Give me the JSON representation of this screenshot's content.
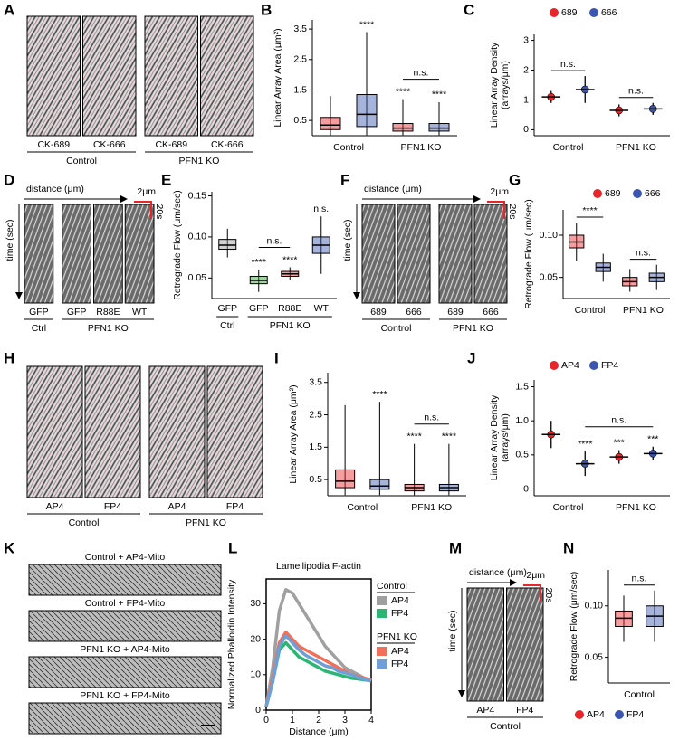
{
  "image_panels": [
    {
      "letter": "A",
      "groups": [
        {
          "name": "Control",
          "images": [
            "CK-689",
            "CK-666"
          ]
        },
        {
          "name": "PFN1 KO",
          "images": [
            "CK-689",
            "CK-666"
          ]
        }
      ]
    },
    {
      "letter": "D",
      "axis_x": "distance (μm)",
      "axis_y": "time (sec)",
      "scale_x": "2μm",
      "scale_y": "20s",
      "groups": [
        {
          "name": "Ctrl",
          "images": [
            "GFP"
          ]
        },
        {
          "name": "PFN1 KO",
          "images": [
            "GFP",
            "R88E",
            "WT"
          ]
        }
      ]
    },
    {
      "letter": "F",
      "axis_x": "distance (μm)",
      "axis_y": "time (sec)",
      "scale_x": "2μm",
      "scale_y": "20s",
      "groups": [
        {
          "name": "Control",
          "images": [
            "689",
            "666"
          ]
        },
        {
          "name": "PFN1 KO",
          "images": [
            "689",
            "666"
          ]
        }
      ]
    },
    {
      "letter": "H",
      "groups": [
        {
          "name": "Control",
          "images": [
            "AP4",
            "FP4"
          ]
        },
        {
          "name": "PFN1 KO",
          "images": [
            "AP4",
            "FP4"
          ]
        }
      ]
    },
    {
      "letter": "K",
      "images": [
        "Control + AP4-Mito",
        "Control + FP4-Mito",
        "PFN1 KO + AP4-Mito",
        "PFN1 KO + FP4-Mito"
      ]
    },
    {
      "letter": "M",
      "axis_x": "distance (μm)",
      "axis_y": "time (sec)",
      "scale_x": "2μm",
      "scale_y": "20s",
      "groups": [
        {
          "name": "Control",
          "images": [
            "AP4",
            "FP4"
          ]
        }
      ]
    }
  ],
  "chart_data": [
    {
      "letter": "B",
      "type": "box",
      "ylabel": [
        "Linear Array Area (μm²)"
      ],
      "ylim": [
        0,
        3.8
      ],
      "yticks": [
        0.5,
        1.5,
        2.5,
        3.5
      ],
      "groups": [
        {
          "name": "Control",
          "boxes": [
            {
              "color": "#e8262a",
              "stats": [
                0.02,
                0.2,
                0.35,
                0.6,
                1.3
              ]
            },
            {
              "color": "#3a56b0",
              "stats": [
                0.02,
                0.3,
                0.7,
                1.35,
                3.4
              ],
              "sig": "****"
            }
          ]
        },
        {
          "name": "PFN1 KO",
          "boxes": [
            {
              "color": "#e8262a",
              "stats": [
                0.02,
                0.15,
                0.25,
                0.4,
                1.2
              ],
              "sig": "****"
            },
            {
              "color": "#3a56b0",
              "stats": [
                0.02,
                0.15,
                0.25,
                0.4,
                1.1
              ],
              "sig": "****"
            }
          ]
        }
      ],
      "brackets": [
        {
          "text": "n.s.",
          "from": [
            1,
            0
          ],
          "to": [
            1,
            1
          ]
        }
      ]
    },
    {
      "letter": "C",
      "type": "mean_sd",
      "ylabel": [
        "Linear Array Density",
        "(arrays/μm)"
      ],
      "ylim": [
        -0.2,
        3.2
      ],
      "yticks": [
        0,
        1,
        2,
        3
      ],
      "legend": [
        {
          "name": "689",
          "color": "#e8262a"
        },
        {
          "name": "666",
          "color": "#3a56b0"
        }
      ],
      "groups": [
        {
          "name": "Control",
          "boxes": [
            {
              "color": "#e8262a",
              "stats": [
                1.1,
                0.2
              ]
            },
            {
              "color": "#3a56b0",
              "stats": [
                1.35,
                0.45
              ]
            }
          ]
        },
        {
          "name": "PFN1 KO",
          "boxes": [
            {
              "color": "#e8262a",
              "stats": [
                0.65,
                0.2
              ]
            },
            {
              "color": "#3a56b0",
              "stats": [
                0.7,
                0.2
              ]
            }
          ]
        }
      ],
      "brackets": [
        {
          "text": "n.s.",
          "from": [
            0,
            0
          ],
          "to": [
            0,
            1
          ]
        },
        {
          "text": "n.s.",
          "from": [
            1,
            0
          ],
          "to": [
            1,
            1
          ]
        }
      ]
    },
    {
      "letter": "E",
      "type": "box",
      "ylabel": [
        "Retrograde Flow (μm/sec)"
      ],
      "ylim": [
        0.025,
        0.155
      ],
      "yticks": [
        0.05,
        {
          "value": 0.1,
          "label": "0.10"
        },
        0.15
      ],
      "groups": [
        {
          "name": "Ctrl",
          "boxes": [
            {
              "label": "GFP",
              "color": "#999999",
              "stats": [
                0.075,
                0.085,
                0.09,
                0.097,
                0.11
              ]
            }
          ]
        },
        {
          "name": "PFN1 KO",
          "boxes": [
            {
              "label": "GFP",
              "color": "#2ca02c",
              "stats": [
                0.033,
                0.043,
                0.047,
                0.052,
                0.06
              ],
              "sig": "****"
            },
            {
              "label": "R88E",
              "color": "#e8262a",
              "stats": [
                0.048,
                0.052,
                0.055,
                0.058,
                0.063
              ],
              "sig": "****"
            },
            {
              "label": "WT",
              "color": "#3a56b0",
              "stats": [
                0.055,
                0.08,
                0.09,
                0.1,
                0.125
              ],
              "sig": "n.s."
            }
          ]
        }
      ],
      "brackets": [
        {
          "text": "n.s.",
          "from": [
            1,
            0
          ],
          "to": [
            1,
            1
          ]
        }
      ]
    },
    {
      "letter": "G",
      "type": "box",
      "ylabel": [
        "Retrograde Flow (μm/sec)"
      ],
      "ylim": [
        0.025,
        0.13
      ],
      "yticks": [
        0.05,
        {
          "value": 0.1,
          "label": "0.10"
        }
      ],
      "legend": [
        {
          "name": "689",
          "color": "#e8262a"
        },
        {
          "name": "666",
          "color": "#3a56b0"
        }
      ],
      "groups": [
        {
          "name": "Control",
          "boxes": [
            {
              "color": "#e8262a",
              "stats": [
                0.07,
                0.085,
                0.092,
                0.1,
                0.115
              ]
            },
            {
              "color": "#3a56b0",
              "stats": [
                0.045,
                0.057,
                0.062,
                0.067,
                0.078
              ]
            }
          ]
        },
        {
          "name": "PFN1 KO",
          "boxes": [
            {
              "color": "#e8262a",
              "stats": [
                0.033,
                0.04,
                0.045,
                0.05,
                0.06
              ]
            },
            {
              "color": "#3a56b0",
              "stats": [
                0.035,
                0.045,
                0.05,
                0.055,
                0.065
              ]
            }
          ]
        }
      ],
      "brackets": [
        {
          "text": "****",
          "from": [
            0,
            0
          ],
          "to": [
            0,
            1
          ]
        },
        {
          "text": "n.s.",
          "from": [
            1,
            0
          ],
          "to": [
            1,
            1
          ]
        }
      ]
    },
    {
      "letter": "I",
      "type": "box",
      "ylabel": [
        "Linear Array Area (μm²)"
      ],
      "ylim": [
        0,
        3.8
      ],
      "yticks": [
        0.5,
        1.5,
        2.5,
        3.5
      ],
      "groups": [
        {
          "name": "Control",
          "boxes": [
            {
              "color": "#e8262a",
              "stats": [
                0.02,
                0.25,
                0.45,
                0.8,
                2.8
              ]
            },
            {
              "color": "#3a56b0",
              "stats": [
                0.02,
                0.2,
                0.3,
                0.5,
                2.9
              ],
              "sig": "****"
            }
          ]
        },
        {
          "name": "PFN1 KO",
          "boxes": [
            {
              "color": "#e8262a",
              "stats": [
                0.02,
                0.15,
                0.25,
                0.35,
                1.6
              ],
              "sig": "****"
            },
            {
              "color": "#3a56b0",
              "stats": [
                0.02,
                0.15,
                0.25,
                0.35,
                1.6
              ],
              "sig": "****"
            }
          ]
        }
      ],
      "brackets": [
        {
          "text": "n.s.",
          "from": [
            1,
            0
          ],
          "to": [
            1,
            1
          ]
        }
      ]
    },
    {
      "letter": "J",
      "type": "mean_sd",
      "ylabel": [
        "Linear Array Density",
        "(arrays/μm)"
      ],
      "ylim": [
        -0.1,
        1.6
      ],
      "yticks": [
        0,
        0.5,
        {
          "value": 1,
          "label": "1.0"
        },
        1.5
      ],
      "legend": [
        {
          "name": "AP4",
          "color": "#e8262a"
        },
        {
          "name": "FP4",
          "color": "#3a56b0"
        }
      ],
      "groups": [
        {
          "name": "Control",
          "boxes": [
            {
              "color": "#e8262a",
              "stats": [
                0.8,
                0.2
              ]
            },
            {
              "color": "#3a56b0",
              "stats": [
                0.37,
                0.18
              ],
              "sig": "****"
            }
          ]
        },
        {
          "name": "PFN1 KO",
          "boxes": [
            {
              "color": "#e8262a",
              "stats": [
                0.47,
                0.1
              ],
              "sig": "***"
            },
            {
              "color": "#3a56b0",
              "stats": [
                0.52,
                0.1
              ],
              "sig": "***"
            }
          ]
        }
      ],
      "brackets": [
        {
          "text": "n.s.",
          "from": [
            0,
            1
          ],
          "to": [
            1,
            1
          ]
        }
      ]
    },
    {
      "letter": "L",
      "type": "line",
      "title": "Lamellipodia F-actin",
      "xlabel": "Distance (μm)",
      "ylabel": [
        "Normalized Phalloidin Intensity"
      ],
      "xlim": [
        0,
        4
      ],
      "ylim": [
        0,
        37
      ],
      "xticks": [
        0,
        1,
        2,
        3,
        4
      ],
      "yticks": [
        0,
        10,
        20,
        30
      ],
      "x": [
        0,
        0.25,
        0.5,
        0.75,
        1,
        1.25,
        1.5,
        1.75,
        2,
        2.25,
        2.5,
        2.75,
        3,
        3.25,
        3.5,
        3.75,
        4
      ],
      "series_groups": [
        {
          "name": "Control",
          "series": [
            {
              "name": "AP4",
              "color": "#a0a0a0",
              "values": [
                1,
                12,
                28,
                34,
                33,
                30,
                27,
                24,
                21,
                18,
                16,
                14,
                12,
                11,
                10,
                9,
                8.5
              ]
            },
            {
              "name": "FP4",
              "color": "#2bb673",
              "values": [
                1,
                8,
                17,
                19,
                17,
                15,
                14,
                13,
                12,
                11,
                10.5,
                10,
                9.5,
                9,
                8.8,
                8.5,
                8.3
              ]
            }
          ]
        },
        {
          "name": "PFN1 KO",
          "series": [
            {
              "name": "AP4",
              "color": "#f0705a",
              "values": [
                1,
                9,
                19,
                22,
                20,
                18,
                17,
                16,
                15,
                14,
                13,
                12,
                11,
                10,
                9.5,
                9,
                8.5
              ]
            },
            {
              "name": "FP4",
              "color": "#6f9fd8",
              "values": [
                1,
                8,
                18,
                21,
                19,
                17,
                15.5,
                14.5,
                13.5,
                12.5,
                12,
                11,
                10.5,
                10,
                9.2,
                8.7,
                8.2
              ]
            }
          ]
        }
      ]
    },
    {
      "letter": "N",
      "type": "box",
      "ylabel": [
        "Retrograde Flow (μm/sec)"
      ],
      "ylim": [
        0.025,
        0.135
      ],
      "yticks": [
        0.05,
        {
          "value": 0.1,
          "label": "0.10"
        }
      ],
      "legend": [
        {
          "name": "AP4",
          "color": "#e8262a"
        },
        {
          "name": "FP4",
          "color": "#3a56b0"
        }
      ],
      "groups": [
        {
          "name": "Control",
          "boxes": [
            {
              "color": "#e8262a",
              "stats": [
                0.065,
                0.08,
                0.088,
                0.095,
                0.11
              ]
            },
            {
              "color": "#3a56b0",
              "stats": [
                0.065,
                0.08,
                0.09,
                0.1,
                0.115
              ]
            }
          ]
        }
      ],
      "brackets": [
        {
          "text": "n.s.",
          "from": [
            0,
            0
          ],
          "to": [
            0,
            1
          ]
        }
      ]
    }
  ]
}
